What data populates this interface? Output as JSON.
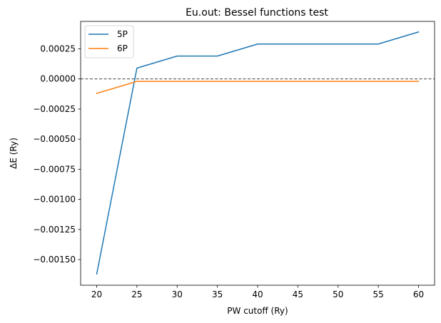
{
  "chart_data": {
    "type": "line",
    "title": "Eu.out: Bessel functions test",
    "xlabel": "PW cutoff (Ry)",
    "ylabel": "ΔE (Ry)",
    "x": [
      20,
      25,
      30,
      35,
      40,
      45,
      50,
      55,
      60
    ],
    "xticks": [
      20,
      25,
      30,
      35,
      40,
      45,
      50,
      55,
      60
    ],
    "yticks": [
      -0.0015,
      -0.00125,
      -0.001,
      -0.00075,
      -0.0005,
      -0.00025,
      0.0,
      0.00025
    ],
    "ytick_labels": [
      "−0.00150",
      "−0.00125",
      "−0.00100",
      "−0.00075",
      "−0.00050",
      "−0.00025",
      "0.00000",
      "0.00025"
    ],
    "xlim": [
      18,
      62
    ],
    "ylim": [
      -0.001713,
      0.000478
    ],
    "reference_line": {
      "y": 0.0,
      "style": "dashed",
      "color": "#000000"
    },
    "legend_placement": "upper-left",
    "grid": false,
    "series": [
      {
        "name": "5P",
        "color": "#1f77b4",
        "values": [
          -0.00162,
          9e-05,
          0.00019,
          0.00019,
          0.00029,
          0.00029,
          0.00029,
          0.00029,
          0.00039
        ]
      },
      {
        "name": "6P",
        "color": "#ff7f0e",
        "values": [
          -0.00012,
          -2e-05,
          -2e-05,
          -2e-05,
          -2e-05,
          -2e-05,
          -2e-05,
          -2e-05,
          -2e-05
        ]
      }
    ]
  }
}
